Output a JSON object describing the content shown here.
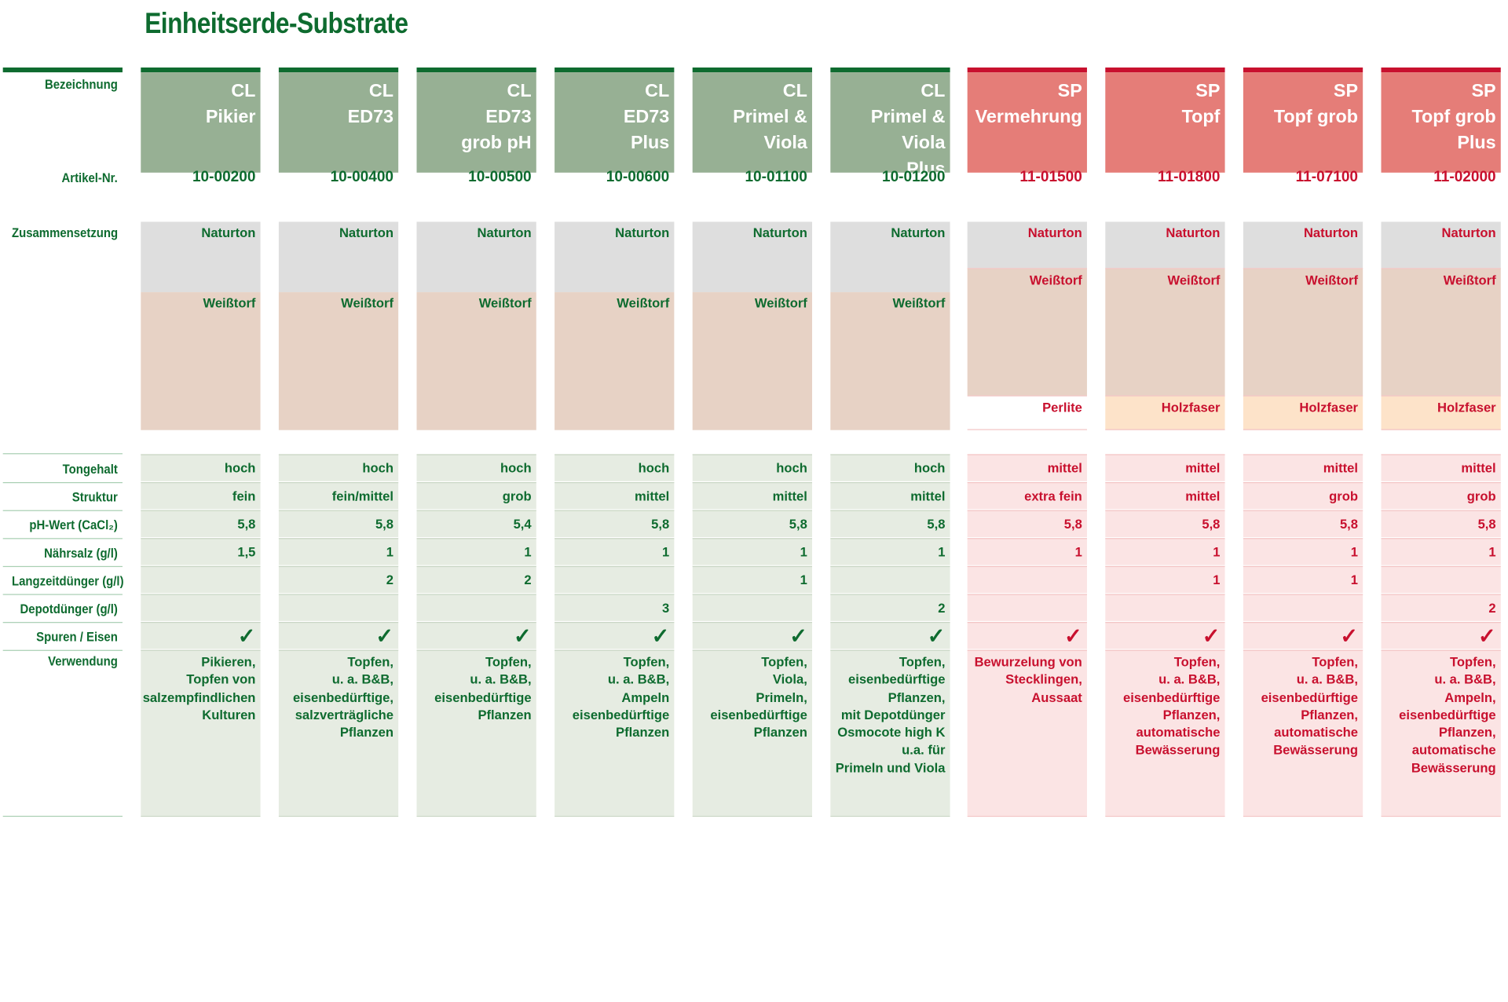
{
  "title": "Einheitserde-Substrate",
  "labels": {
    "bezeichnung": "Bezeichnung",
    "artikel": "Artikel-Nr.",
    "zusammensetzung": "Zusammensetzung",
    "tongehalt": "Tongehalt",
    "struktur": "Struktur",
    "ph": "pH-Wert  (CaCl₂)",
    "naehrsalz": "Nährsalz (g/l)",
    "langzeit": "Langzeitdünger (g/l)",
    "depot": "Depotdünger (g/l)",
    "spuren": "Spuren / Eisen",
    "verwendung": "Verwendung"
  },
  "colors": {
    "cl_dark": "#0e6b2f",
    "cl_head": "#97b094",
    "cl_row": "#e6ece2",
    "sp_dark": "#c8102e",
    "sp_head": "#e57d78",
    "sp_row": "#fbe4e4",
    "naturton": "#dedede",
    "weisstorf": "#e7d2c5",
    "holzfaser": "#fde3c9"
  },
  "products": [
    {
      "line": "CL",
      "name": "CL\nPikier",
      "artikel": "10-00200",
      "comp": [
        "Naturton",
        "Weißtorf"
      ],
      "tongehalt": "hoch",
      "struktur": "fein",
      "ph": "5,8",
      "naehrsalz": "1,5",
      "langzeit": "",
      "depot": "",
      "spuren": true,
      "verwendung": "Pikieren,\nTopfen von\nsalzempfindlichen\nKulturen"
    },
    {
      "line": "CL",
      "name": "CL\nED73",
      "artikel": "10-00400",
      "comp": [
        "Naturton",
        "Weißtorf"
      ],
      "tongehalt": "hoch",
      "struktur": "fein/mittel",
      "ph": "5,8",
      "naehrsalz": "1",
      "langzeit": "2",
      "depot": "",
      "spuren": true,
      "verwendung": "Topfen,\nu. a. B&B,\neisenbedürftige,\nsalzverträgliche\nPflanzen"
    },
    {
      "line": "CL",
      "name": "CL\nED73\ngrob pH",
      "artikel": "10-00500",
      "comp": [
        "Naturton",
        "Weißtorf"
      ],
      "tongehalt": "hoch",
      "struktur": "grob",
      "ph": "5,4",
      "naehrsalz": "1",
      "langzeit": "2",
      "depot": "",
      "spuren": true,
      "verwendung": "Topfen,\nu. a. B&B,\neisenbedürftige\nPflanzen"
    },
    {
      "line": "CL",
      "name": "CL\nED73\nPlus",
      "artikel": "10-00600",
      "comp": [
        "Naturton",
        "Weißtorf"
      ],
      "tongehalt": "hoch",
      "struktur": "mittel",
      "ph": "5,8",
      "naehrsalz": "1",
      "langzeit": "",
      "depot": "3",
      "spuren": true,
      "verwendung": "Topfen,\nu. a. B&B,\nAmpeln\neisenbedürftige\nPflanzen"
    },
    {
      "line": "CL",
      "name": "CL\nPrimel & Viola",
      "artikel": "10-01100",
      "comp": [
        "Naturton",
        "Weißtorf"
      ],
      "tongehalt": "hoch",
      "struktur": "mittel",
      "ph": "5,8",
      "naehrsalz": "1",
      "langzeit": "1",
      "depot": "",
      "spuren": true,
      "verwendung": "Topfen,\nViola,\nPrimeln,\neisenbedürftige\nPflanzen"
    },
    {
      "line": "CL",
      "name": "CL\nPrimel & Viola\nPlus",
      "artikel": "10-01200",
      "comp": [
        "Naturton",
        "Weißtorf"
      ],
      "tongehalt": "hoch",
      "struktur": "mittel",
      "ph": "5,8",
      "naehrsalz": "1",
      "langzeit": "",
      "depot": "2",
      "spuren": true,
      "verwendung": "Topfen,\neisenbedürftige\nPflanzen,\nmit Depotdünger\nOsmocote high K\nu.a. für\nPrimeln und Viola"
    },
    {
      "line": "SP",
      "name": "SP\nVermehrung",
      "artikel": "11-01500",
      "comp": [
        "Naturton",
        "Weißtorf",
        "Perlite"
      ],
      "tongehalt": "mittel",
      "struktur": "extra fein",
      "ph": "5,8",
      "naehrsalz": "1",
      "langzeit": "",
      "depot": "",
      "spuren": true,
      "verwendung": "Bewurzelung von\nStecklingen,\nAussaat"
    },
    {
      "line": "SP",
      "name": "SP\nTopf",
      "artikel": "11-01800",
      "comp": [
        "Naturton",
        "Weißtorf",
        "Holzfaser"
      ],
      "tongehalt": "mittel",
      "struktur": "mittel",
      "ph": "5,8",
      "naehrsalz": "1",
      "langzeit": "1",
      "depot": "",
      "spuren": true,
      "verwendung": "Topfen,\nu. a. B&B,\neisenbedürftige\nPflanzen,\nautomatische\nBewässerung"
    },
    {
      "line": "SP",
      "name": "SP\nTopf grob",
      "artikel": "11-07100",
      "comp": [
        "Naturton",
        "Weißtorf",
        "Holzfaser"
      ],
      "tongehalt": "mittel",
      "struktur": "grob",
      "ph": "5,8",
      "naehrsalz": "1",
      "langzeit": "1",
      "depot": "",
      "spuren": true,
      "verwendung": "Topfen,\nu. a. B&B,\neisenbedürftige\nPflanzen,\nautomatische\nBewässerung"
    },
    {
      "line": "SP",
      "name": "SP\nTopf grob\nPlus",
      "artikel": "11-02000",
      "comp": [
        "Naturton",
        "Weißtorf",
        "Holzfaser"
      ],
      "tongehalt": "mittel",
      "struktur": "grob",
      "ph": "5,8",
      "naehrsalz": "1",
      "langzeit": "",
      "depot": "2",
      "spuren": true,
      "verwendung": "Topfen,\nu. a. B&B,\nAmpeln,\neisenbedürftige\nPflanzen,\nautomatische\nBewässerung"
    }
  ]
}
